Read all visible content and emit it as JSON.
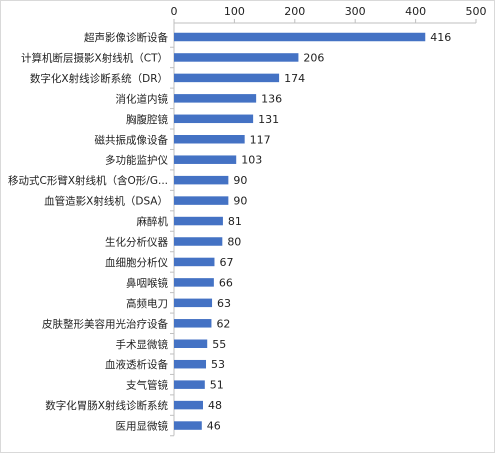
{
  "chart_data": {
    "type": "bar",
    "orientation": "horizontal",
    "x_axis_position": "top",
    "xlim": [
      0,
      500
    ],
    "xticks": [
      0,
      100,
      200,
      300,
      400,
      500
    ],
    "grid": false,
    "bar_color": "#4472C4",
    "categories": [
      "超声影像诊断设备",
      "计算机断层摄影X射线机（CT）",
      "数字化X射线诊断系统（DR）",
      "消化道内镜",
      "胸腹腔镜",
      "磁共振成像设备",
      "多功能监护仪",
      "移动式C形臂X射线机（含O形/G...",
      "血管造影X射线机（DSA）",
      "麻醉机",
      "生化分析仪器",
      "血细胞分析仪",
      "鼻咽喉镜",
      "高频电刀",
      "皮肤整形美容用光治疗设备",
      "手术显微镜",
      "血液透析设备",
      "支气管镜",
      "数字化胃肠X射线诊断系统",
      "医用显微镜"
    ],
    "values": [
      416,
      206,
      174,
      136,
      131,
      117,
      103,
      90,
      90,
      81,
      80,
      67,
      66,
      63,
      62,
      55,
      53,
      51,
      48,
      46
    ]
  }
}
